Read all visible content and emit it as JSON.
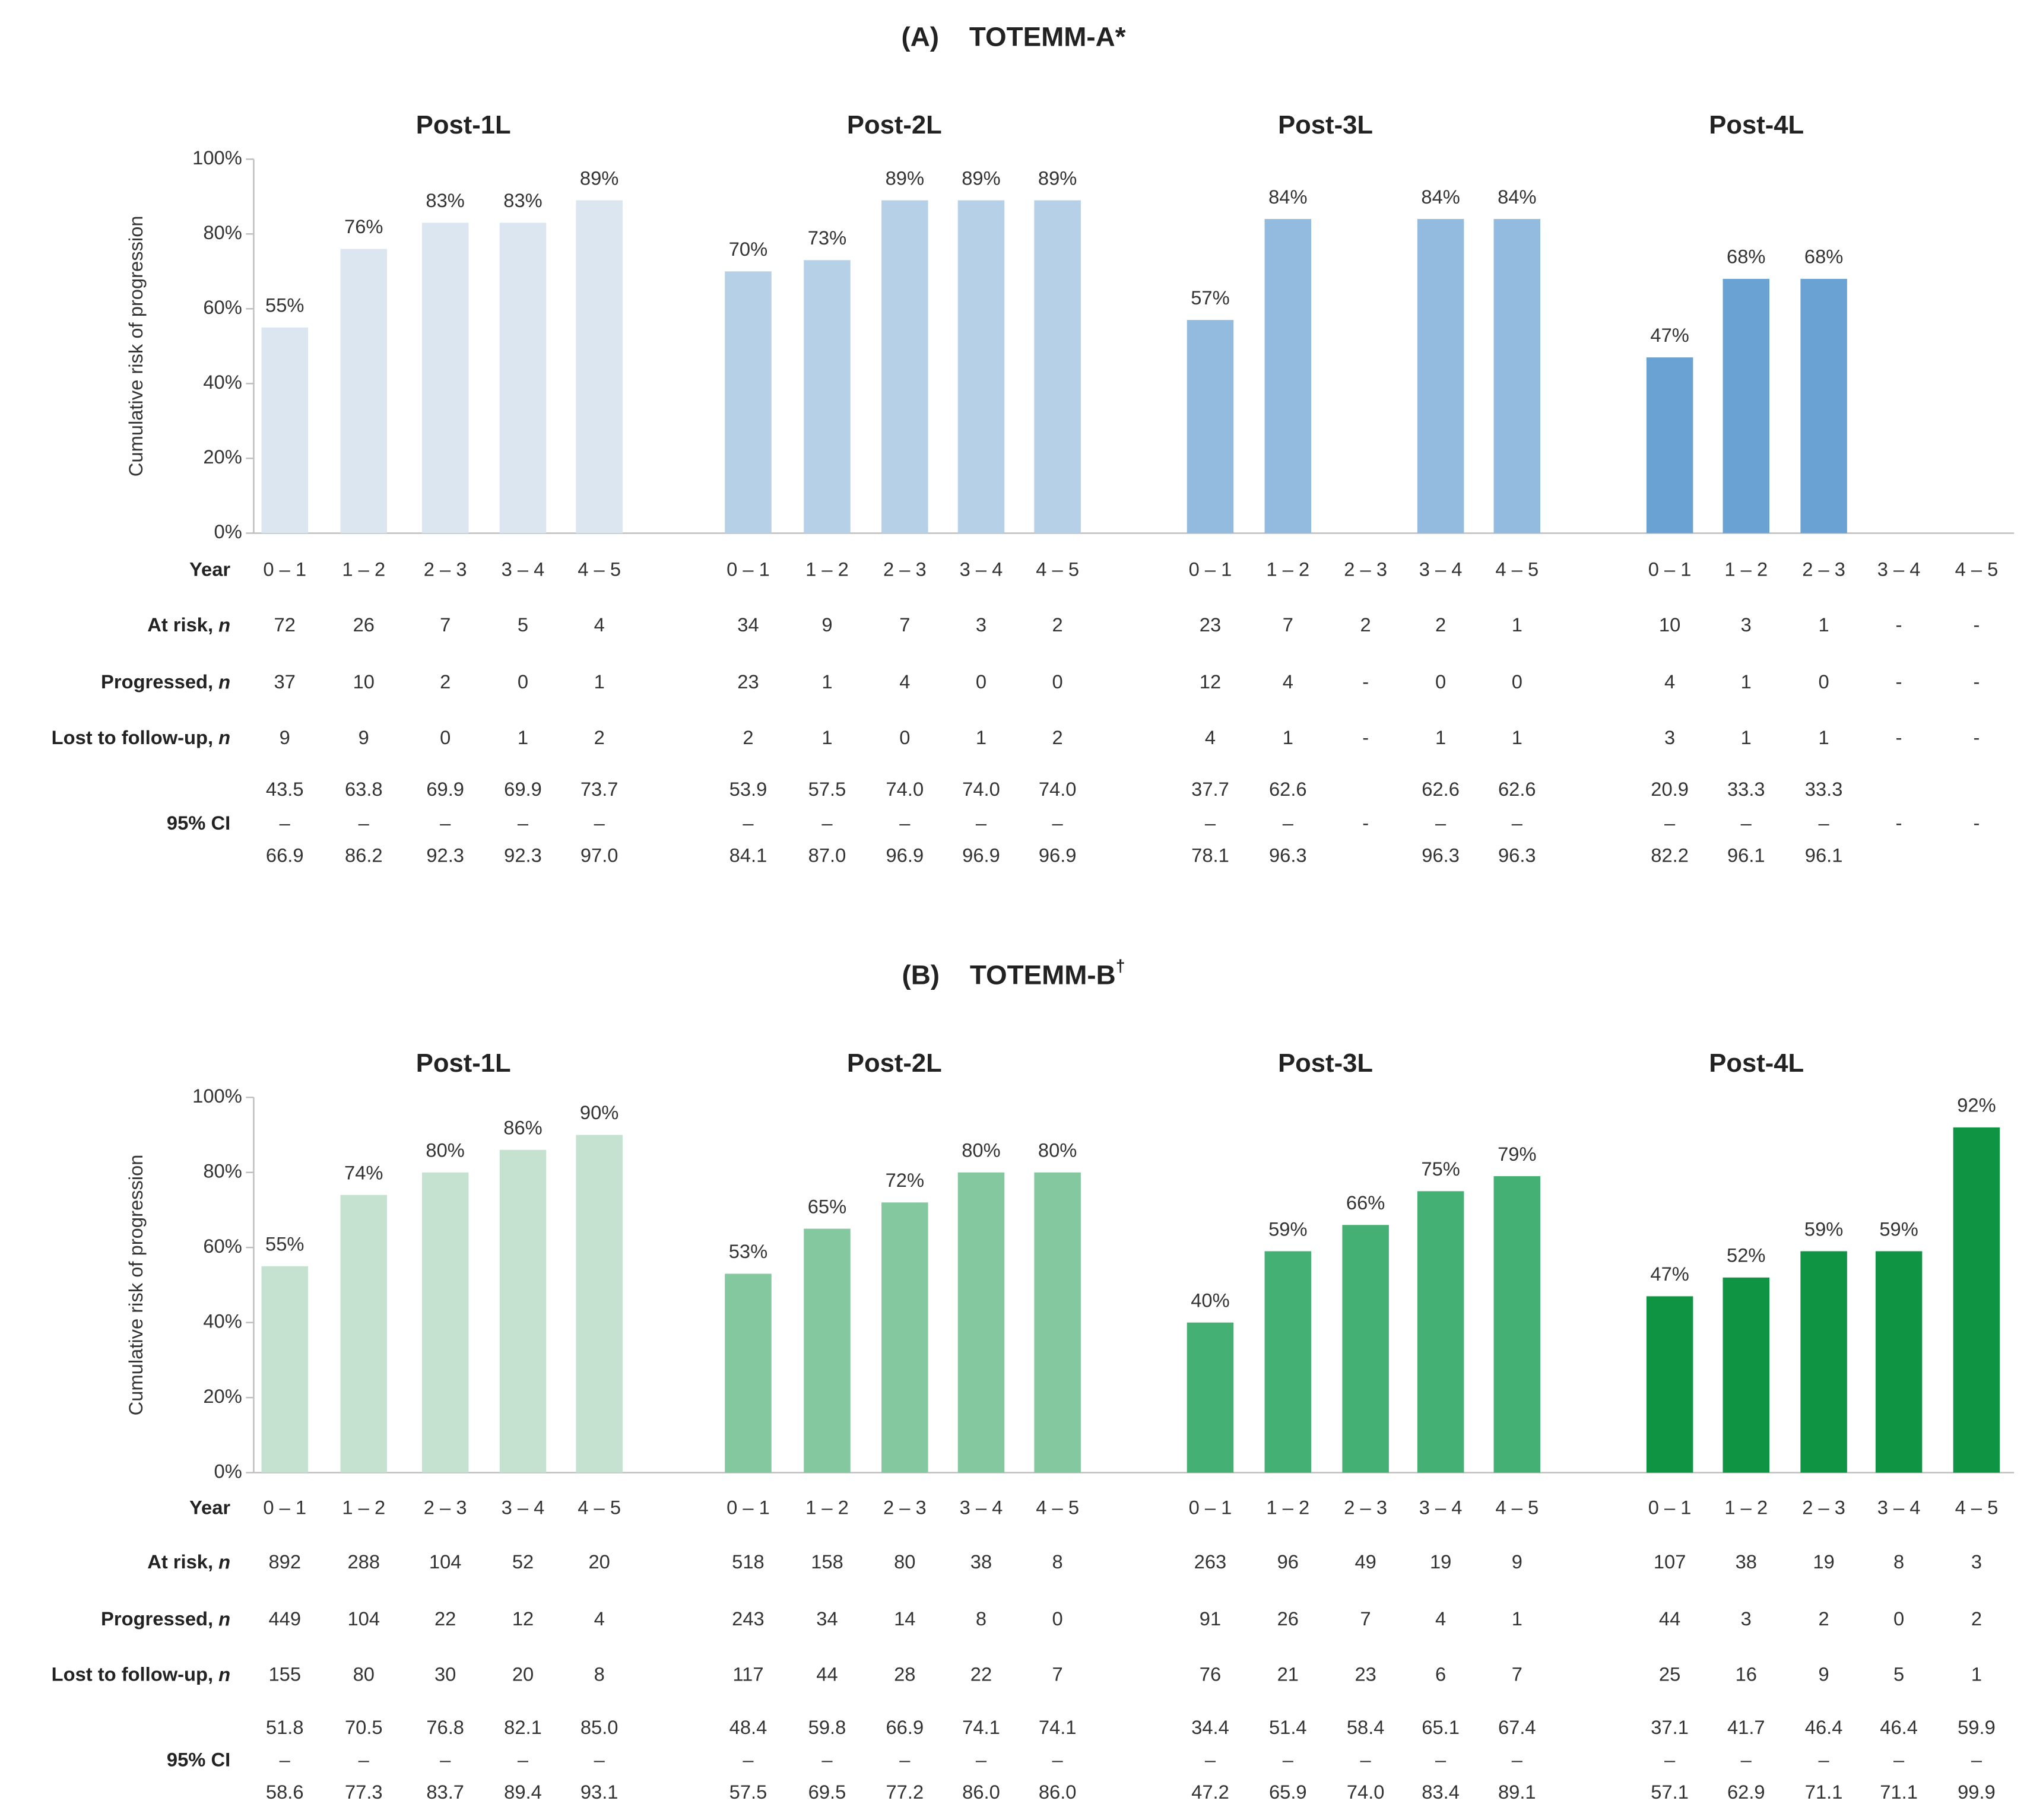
{
  "chart_data": [
    {
      "type": "bar",
      "title": "(A)    TOTEMM-A*",
      "ylabel": "Cumulative risk of progression",
      "ylim": [
        0,
        100
      ],
      "yticks": [
        "0%",
        "20%",
        "40%",
        "60%",
        "80%",
        "100%"
      ],
      "colors": [
        "#dbe6f1",
        "#b6d0e8",
        "#93badf",
        "#6aa2d3"
      ],
      "row_labels": {
        "year": "Year",
        "at_risk": "At risk, ",
        "progressed": "Progressed, ",
        "lost": "Lost to follow-up, ",
        "n": "n",
        "ci": "95% CI"
      },
      "panels": [
        {
          "title": "Post-1L",
          "categories": [
            "0 – 1",
            "1 – 2",
            "2 – 3",
            "3 – 4",
            "4 – 5"
          ],
          "values": [
            55,
            76,
            83,
            83,
            89
          ],
          "labels": [
            "55%",
            "76%",
            "83%",
            "83%",
            "89%"
          ],
          "at_risk": [
            "72",
            "26",
            "7",
            "5",
            "4"
          ],
          "progressed": [
            "37",
            "10",
            "2",
            "0",
            "1"
          ],
          "lost": [
            "9",
            "9",
            "0",
            "1",
            "2"
          ],
          "ci_low": [
            "43.5",
            "63.8",
            "69.9",
            "69.9",
            "73.7"
          ],
          "ci_high": [
            "66.9",
            "86.2",
            "92.3",
            "92.3",
            "97.0"
          ],
          "ci_dash": [
            "–",
            "–",
            "–",
            "–",
            "–"
          ]
        },
        {
          "title": "Post-2L",
          "categories": [
            "0 – 1",
            "1 – 2",
            "2 – 3",
            "3 – 4",
            "4 – 5"
          ],
          "values": [
            70,
            73,
            89,
            89,
            89
          ],
          "labels": [
            "70%",
            "73%",
            "89%",
            "89%",
            "89%"
          ],
          "at_risk": [
            "34",
            "9",
            "7",
            "3",
            "2"
          ],
          "progressed": [
            "23",
            "1",
            "4",
            "0",
            "0"
          ],
          "lost": [
            "2",
            "1",
            "0",
            "1",
            "2"
          ],
          "ci_low": [
            "53.9",
            "57.5",
            "74.0",
            "74.0",
            "74.0"
          ],
          "ci_high": [
            "84.1",
            "87.0",
            "96.9",
            "96.9",
            "96.9"
          ],
          "ci_dash": [
            "–",
            "–",
            "–",
            "–",
            "–"
          ]
        },
        {
          "title": "Post-3L",
          "categories": [
            "0 – 1",
            "1 – 2",
            "2 – 3",
            "3 – 4",
            "4 – 5"
          ],
          "values": [
            57,
            84,
            null,
            84,
            84
          ],
          "labels": [
            "57%",
            "84%",
            "",
            "84%",
            "84%"
          ],
          "at_risk": [
            "23",
            "7",
            "2",
            "2",
            "1"
          ],
          "progressed": [
            "12",
            "4",
            "-",
            "0",
            "0"
          ],
          "lost": [
            "4",
            "1",
            "-",
            "1",
            "1"
          ],
          "ci_low": [
            "37.7",
            "62.6",
            "",
            "62.6",
            "62.6"
          ],
          "ci_high": [
            "78.1",
            "96.3",
            "",
            "96.3",
            "96.3"
          ],
          "ci_dash": [
            "–",
            "–",
            "-",
            "–",
            "–"
          ]
        },
        {
          "title": "Post-4L",
          "categories": [
            "0 – 1",
            "1 – 2",
            "2 – 3",
            "3 – 4",
            "4 – 5"
          ],
          "values": [
            47,
            68,
            68,
            null,
            null
          ],
          "labels": [
            "47%",
            "68%",
            "68%",
            "",
            ""
          ],
          "at_risk": [
            "10",
            "3",
            "1",
            "-",
            "-"
          ],
          "progressed": [
            "4",
            "1",
            "0",
            "-",
            "-"
          ],
          "lost": [
            "3",
            "1",
            "1",
            "-",
            "-"
          ],
          "ci_low": [
            "20.9",
            "33.3",
            "33.3",
            "",
            ""
          ],
          "ci_high": [
            "82.2",
            "96.1",
            "96.1",
            "",
            ""
          ],
          "ci_dash": [
            "–",
            "–",
            "–",
            "-",
            "-"
          ]
        }
      ]
    },
    {
      "type": "bar",
      "title": "(B)    TOTEMM-B",
      "title_sup": "†",
      "ylabel": "Cumulative risk of progression",
      "ylim": [
        0,
        100
      ],
      "yticks": [
        "0%",
        "20%",
        "40%",
        "60%",
        "80%",
        "100%"
      ],
      "colors": [
        "#c4e2cf",
        "#84c8a0",
        "#44b073",
        "#0f9444"
      ],
      "row_labels": {
        "year": "Year",
        "at_risk": "At risk, ",
        "progressed": "Progressed, ",
        "lost": "Lost to follow-up, ",
        "n": "n",
        "ci": "95% CI"
      },
      "panels": [
        {
          "title": "Post-1L",
          "categories": [
            "0 – 1",
            "1 – 2",
            "2 – 3",
            "3 – 4",
            "4 – 5"
          ],
          "values": [
            55,
            74,
            80,
            86,
            90
          ],
          "labels": [
            "55%",
            "74%",
            "80%",
            "86%",
            "90%"
          ],
          "at_risk": [
            "892",
            "288",
            "104",
            "52",
            "20"
          ],
          "progressed": [
            "449",
            "104",
            "22",
            "12",
            "4"
          ],
          "lost": [
            "155",
            "80",
            "30",
            "20",
            "8"
          ],
          "ci_low": [
            "51.8",
            "70.5",
            "76.8",
            "82.1",
            "85.0"
          ],
          "ci_high": [
            "58.6",
            "77.3",
            "83.7",
            "89.4",
            "93.1"
          ],
          "ci_dash": [
            "–",
            "–",
            "–",
            "–",
            "–"
          ]
        },
        {
          "title": "Post-2L",
          "categories": [
            "0 – 1",
            "1 – 2",
            "2 – 3",
            "3 – 4",
            "4 – 5"
          ],
          "values": [
            53,
            65,
            72,
            80,
            80
          ],
          "labels": [
            "53%",
            "65%",
            "72%",
            "80%",
            "80%"
          ],
          "at_risk": [
            "518",
            "158",
            "80",
            "38",
            "8"
          ],
          "progressed": [
            "243",
            "34",
            "14",
            "8",
            "0"
          ],
          "lost": [
            "117",
            "44",
            "28",
            "22",
            "7"
          ],
          "ci_low": [
            "48.4",
            "59.8",
            "66.9",
            "74.1",
            "74.1"
          ],
          "ci_high": [
            "57.5",
            "69.5",
            "77.2",
            "86.0",
            "86.0"
          ],
          "ci_dash": [
            "–",
            "–",
            "–",
            "–",
            "–"
          ]
        },
        {
          "title": "Post-3L",
          "categories": [
            "0 – 1",
            "1 – 2",
            "2 – 3",
            "3 – 4",
            "4 – 5"
          ],
          "values": [
            40,
            59,
            66,
            75,
            79
          ],
          "labels": [
            "40%",
            "59%",
            "66%",
            "75%",
            "79%"
          ],
          "at_risk": [
            "263",
            "96",
            "49",
            "19",
            "9"
          ],
          "progressed": [
            "91",
            "26",
            "7",
            "4",
            "1"
          ],
          "lost": [
            "76",
            "21",
            "23",
            "6",
            "7"
          ],
          "ci_low": [
            "34.4",
            "51.4",
            "58.4",
            "65.1",
            "67.4"
          ],
          "ci_high": [
            "47.2",
            "65.9",
            "74.0",
            "83.4",
            "89.1"
          ],
          "ci_dash": [
            "–",
            "–",
            "–",
            "–",
            "–"
          ]
        },
        {
          "title": "Post-4L",
          "categories": [
            "0 – 1",
            "1 – 2",
            "2 – 3",
            "3 – 4",
            "4 – 5"
          ],
          "values": [
            47,
            52,
            59,
            59,
            92
          ],
          "labels": [
            "47%",
            "52%",
            "59%",
            "59%",
            "92%"
          ],
          "at_risk": [
            "107",
            "38",
            "19",
            "8",
            "3"
          ],
          "progressed": [
            "44",
            "3",
            "2",
            "0",
            "2"
          ],
          "lost": [
            "25",
            "16",
            "9",
            "5",
            "1"
          ],
          "ci_low": [
            "37.1",
            "41.7",
            "46.4",
            "46.4",
            "59.9"
          ],
          "ci_high": [
            "57.1",
            "62.9",
            "71.1",
            "71.1",
            "99.9"
          ],
          "ci_dash": [
            "–",
            "–",
            "–",
            "–",
            "–"
          ]
        }
      ]
    }
  ]
}
